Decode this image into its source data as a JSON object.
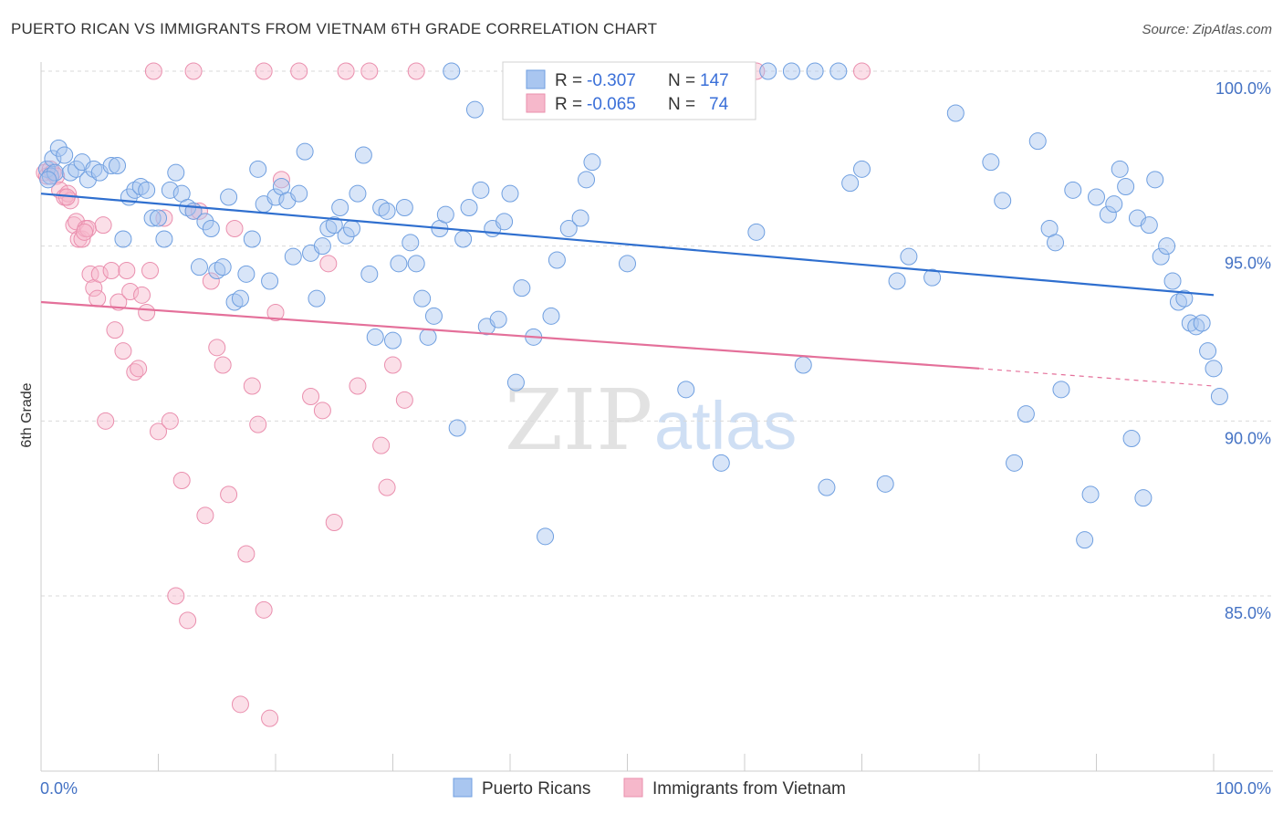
{
  "title": "PUERTO RICAN VS IMMIGRANTS FROM VIETNAM 6TH GRADE CORRELATION CHART",
  "source": "Source: ZipAtlas.com",
  "watermark": {
    "zip": "ZIP",
    "atlas": "atlas"
  },
  "colors": {
    "blue_fill": "#a9c6f0",
    "blue_stroke": "#6f9fe0",
    "blue_line": "#2f6fcf",
    "pink_fill": "#f6b8cb",
    "pink_stroke": "#ea8fae",
    "pink_line": "#e4709a",
    "tick_text": "#4472c4",
    "grid": "#d9d9d9"
  },
  "legend": {
    "rows": [
      {
        "r_label": "R =",
        "r_value": "-0.307",
        "n_label": "N =",
        "n_value": "147"
      },
      {
        "r_label": "R =",
        "r_value": "-0.065",
        "n_label": "N =",
        "n_value": "74"
      }
    ]
  },
  "chart_data": {
    "type": "scatter",
    "title": "PUERTO RICAN VS IMMIGRANTS FROM VIETNAM 6TH GRADE CORRELATION CHART",
    "xlabel": "",
    "ylabel": "6th Grade",
    "x_tick_labels": [
      "0.0%",
      "100.0%"
    ],
    "y_tick_labels": [
      "100.0%",
      "95.0%",
      "90.0%",
      "85.0%"
    ],
    "y_ticks": [
      100,
      95,
      90,
      85
    ],
    "xlim": [
      0,
      100
    ],
    "ylim": [
      80.5,
      100.4
    ],
    "grid": true,
    "legend_position": "top-center",
    "series": [
      {
        "name": "Puerto Ricans",
        "trend": {
          "x0": 0,
          "y0": 96.5,
          "x1": 100,
          "y1": 93.6,
          "dashed_from": null
        },
        "points": [
          [
            0.5,
            97.2
          ],
          [
            0.8,
            97.0
          ],
          [
            1,
            97.5
          ],
          [
            1.2,
            97.1
          ],
          [
            1.5,
            97.8
          ],
          [
            2,
            97.6
          ],
          [
            2.5,
            97.1
          ],
          [
            3,
            97.2
          ],
          [
            3.5,
            97.4
          ],
          [
            4,
            96.9
          ],
          [
            4.5,
            97.2
          ],
          [
            5,
            97.1
          ],
          [
            6,
            97.3
          ],
          [
            6.5,
            97.3
          ],
          [
            7,
            95.2
          ],
          [
            7.5,
            96.4
          ],
          [
            8,
            96.6
          ],
          [
            8.5,
            96.7
          ],
          [
            9,
            96.6
          ],
          [
            9.5,
            95.8
          ],
          [
            10,
            95.8
          ],
          [
            10.5,
            95.2
          ],
          [
            11,
            96.6
          ],
          [
            11.5,
            97.1
          ],
          [
            12,
            96.5
          ],
          [
            12.5,
            96.1
          ],
          [
            13,
            96.0
          ],
          [
            13.5,
            94.4
          ],
          [
            14,
            95.7
          ],
          [
            14.5,
            95.5
          ],
          [
            15,
            94.3
          ],
          [
            15.5,
            94.4
          ],
          [
            16,
            96.4
          ],
          [
            16.5,
            93.4
          ],
          [
            17,
            93.5
          ],
          [
            17.5,
            94.2
          ],
          [
            18,
            95.2
          ],
          [
            18.5,
            97.2
          ],
          [
            19,
            96.2
          ],
          [
            19.5,
            94.0
          ],
          [
            20,
            96.4
          ],
          [
            20.5,
            96.7
          ],
          [
            21,
            96.3
          ],
          [
            21.5,
            94.7
          ],
          [
            22,
            96.5
          ],
          [
            22.5,
            97.7
          ],
          [
            23,
            94.8
          ],
          [
            23.5,
            93.5
          ],
          [
            24,
            95.0
          ],
          [
            24.5,
            95.5
          ],
          [
            25,
            95.6
          ],
          [
            25.5,
            96.1
          ],
          [
            26,
            95.3
          ],
          [
            26.5,
            95.5
          ],
          [
            27,
            96.5
          ],
          [
            27.5,
            97.6
          ],
          [
            28,
            94.2
          ],
          [
            28.5,
            92.4
          ],
          [
            29,
            96.1
          ],
          [
            29.5,
            96.0
          ],
          [
            30,
            92.3
          ],
          [
            30.5,
            94.5
          ],
          [
            31,
            96.1
          ],
          [
            31.5,
            95.1
          ],
          [
            32,
            94.5
          ],
          [
            32.5,
            93.5
          ],
          [
            33,
            92.4
          ],
          [
            33.5,
            93.0
          ],
          [
            34,
            95.5
          ],
          [
            34.5,
            95.9
          ],
          [
            35,
            100.0
          ],
          [
            35.5,
            89.8
          ],
          [
            36,
            95.2
          ],
          [
            36.5,
            96.1
          ],
          [
            37,
            98.9
          ],
          [
            37.5,
            96.6
          ],
          [
            38,
            92.7
          ],
          [
            38.5,
            95.5
          ],
          [
            39,
            92.9
          ],
          [
            39.5,
            95.7
          ],
          [
            40,
            96.5
          ],
          [
            40.5,
            91.1
          ],
          [
            41,
            93.8
          ],
          [
            42,
            92.4
          ],
          [
            43,
            86.7
          ],
          [
            43.5,
            93.0
          ],
          [
            44,
            94.6
          ],
          [
            45,
            95.5
          ],
          [
            46,
            95.8
          ],
          [
            46.5,
            96.9
          ],
          [
            47,
            97.4
          ],
          [
            48,
            100.0
          ],
          [
            49,
            100.0
          ],
          [
            50,
            94.5
          ],
          [
            52,
            100.0
          ],
          [
            53,
            100.0
          ],
          [
            55,
            90.9
          ],
          [
            56,
            100.0
          ],
          [
            58,
            88.8
          ],
          [
            59,
            100.0
          ],
          [
            61,
            95.4
          ],
          [
            62,
            100.0
          ],
          [
            64,
            100.0
          ],
          [
            65,
            91.6
          ],
          [
            66,
            100.0
          ],
          [
            67,
            88.1
          ],
          [
            68,
            100.0
          ],
          [
            69,
            96.8
          ],
          [
            70,
            97.2
          ],
          [
            72,
            88.2
          ],
          [
            73,
            94.0
          ],
          [
            74,
            94.7
          ],
          [
            76,
            94.1
          ],
          [
            78,
            98.8
          ],
          [
            81,
            97.4
          ],
          [
            82,
            96.3
          ],
          [
            83,
            88.8
          ],
          [
            84,
            90.2
          ],
          [
            85,
            98.0
          ],
          [
            86,
            95.5
          ],
          [
            86.5,
            95.1
          ],
          [
            87,
            90.9
          ],
          [
            88,
            96.6
          ],
          [
            89,
            86.6
          ],
          [
            89.5,
            87.9
          ],
          [
            90,
            96.4
          ],
          [
            91,
            95.9
          ],
          [
            91.5,
            96.2
          ],
          [
            92,
            97.2
          ],
          [
            92.5,
            96.7
          ],
          [
            93,
            89.5
          ],
          [
            93.5,
            95.8
          ],
          [
            94,
            87.8
          ],
          [
            94.5,
            95.6
          ],
          [
            95,
            96.9
          ],
          [
            95.5,
            94.7
          ],
          [
            96,
            95.0
          ],
          [
            96.5,
            94.0
          ],
          [
            97,
            93.4
          ],
          [
            97.5,
            93.5
          ],
          [
            98,
            92.8
          ],
          [
            98.5,
            92.7
          ],
          [
            99,
            92.8
          ],
          [
            99.5,
            92.0
          ],
          [
            100,
            91.5
          ],
          [
            100.5,
            90.7
          ],
          [
            0.6,
            96.9
          ]
        ]
      },
      {
        "name": "Immigrants from Vietnam",
        "trend": {
          "x0": 0,
          "y0": 93.4,
          "x1": 80,
          "y1": 91.5,
          "dashed_from": 80,
          "dashed_to": 100,
          "dashed_y": 91.0
        },
        "points": [
          [
            0.3,
            97.1
          ],
          [
            0.5,
            97.0
          ],
          [
            0.8,
            97.2
          ],
          [
            1,
            97.1
          ],
          [
            1.3,
            97.0
          ],
          [
            1.6,
            96.6
          ],
          [
            2,
            96.4
          ],
          [
            2.3,
            96.5
          ],
          [
            2.5,
            96.3
          ],
          [
            2.8,
            95.6
          ],
          [
            3,
            95.7
          ],
          [
            3.2,
            95.2
          ],
          [
            3.5,
            95.2
          ],
          [
            3.8,
            95.5
          ],
          [
            4,
            95.5
          ],
          [
            4.2,
            94.2
          ],
          [
            4.5,
            93.8
          ],
          [
            4.8,
            93.5
          ],
          [
            5,
            94.2
          ],
          [
            5.3,
            95.6
          ],
          [
            5.5,
            90.0
          ],
          [
            6,
            94.3
          ],
          [
            6.3,
            92.6
          ],
          [
            6.6,
            93.4
          ],
          [
            7,
            92.0
          ],
          [
            7.3,
            94.3
          ],
          [
            7.6,
            93.7
          ],
          [
            8,
            91.4
          ],
          [
            8.3,
            91.5
          ],
          [
            8.6,
            93.6
          ],
          [
            9,
            93.1
          ],
          [
            9.3,
            94.3
          ],
          [
            9.6,
            100.0
          ],
          [
            10,
            89.7
          ],
          [
            10.5,
            95.8
          ],
          [
            11,
            90.0
          ],
          [
            11.5,
            85.0
          ],
          [
            12,
            88.3
          ],
          [
            12.5,
            84.3
          ],
          [
            13,
            96.0
          ],
          [
            13.5,
            96.0
          ],
          [
            14,
            87.3
          ],
          [
            14.5,
            94.0
          ],
          [
            15,
            92.1
          ],
          [
            15.5,
            91.6
          ],
          [
            16,
            87.9
          ],
          [
            16.5,
            95.5
          ],
          [
            17,
            81.9
          ],
          [
            17.5,
            86.2
          ],
          [
            18,
            91.0
          ],
          [
            18.5,
            89.9
          ],
          [
            19,
            84.6
          ],
          [
            19.5,
            81.5
          ],
          [
            20,
            93.1
          ],
          [
            20.5,
            96.9
          ],
          [
            22,
            100.0
          ],
          [
            23,
            90.7
          ],
          [
            24,
            90.3
          ],
          [
            24.5,
            94.5
          ],
          [
            25,
            87.1
          ],
          [
            13,
            100.0
          ],
          [
            19,
            100.0
          ],
          [
            26,
            100.0
          ],
          [
            27,
            91.0
          ],
          [
            28,
            100.0
          ],
          [
            29,
            89.3
          ],
          [
            29.5,
            88.1
          ],
          [
            30,
            91.6
          ],
          [
            31,
            90.6
          ],
          [
            32,
            100.0
          ],
          [
            61,
            100.0
          ],
          [
            70,
            100.0
          ],
          [
            2.2,
            96.4
          ],
          [
            3.7,
            95.4
          ]
        ]
      }
    ]
  },
  "bottom_legend": [
    {
      "label": "Puerto Ricans"
    },
    {
      "label": "Immigrants from Vietnam"
    }
  ]
}
